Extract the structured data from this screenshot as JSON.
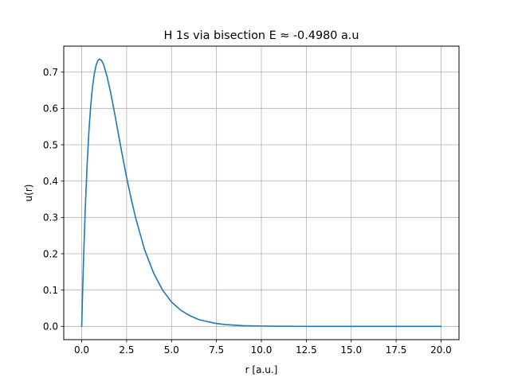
{
  "chart_data": {
    "type": "line",
    "title": "H 1s via bisection E ≈ -0.4980 a.u",
    "xlabel": "r [a.u.]",
    "ylabel": "u(r)",
    "xlim": [
      -1.0,
      21.0
    ],
    "ylim": [
      -0.0365,
      0.7715
    ],
    "grid": true,
    "x_ticks": [
      0.0,
      2.5,
      5.0,
      7.5,
      10.0,
      12.5,
      15.0,
      17.5,
      20.0
    ],
    "x_tick_labels": [
      "0.0",
      "2.5",
      "5.0",
      "7.5",
      "10.0",
      "12.5",
      "15.0",
      "17.5",
      "20.0"
    ],
    "y_ticks": [
      0.0,
      0.1,
      0.2,
      0.3,
      0.4,
      0.5,
      0.6,
      0.7
    ],
    "y_tick_labels": [
      "0.0",
      "0.1",
      "0.2",
      "0.3",
      "0.4",
      "0.5",
      "0.6",
      "0.7"
    ],
    "series": [
      {
        "color": "#1f77b4",
        "x": [
          0,
          0.05,
          0.1,
          0.2,
          0.3,
          0.4,
          0.5,
          0.6,
          0.7,
          0.8,
          0.9,
          1.0,
          1.1,
          1.2,
          1.4,
          1.6,
          1.8,
          2.0,
          2.25,
          2.5,
          2.75,
          3.0,
          3.5,
          4.0,
          4.5,
          5.0,
          5.5,
          6.0,
          6.5,
          7.0,
          7.5,
          8.0,
          9.0,
          10.0,
          11.0,
          12.0,
          13.0,
          14.0,
          15.0,
          16.0,
          17.0,
          18.0,
          19.0,
          20.0
        ],
        "y": [
          0,
          0.095,
          0.181,
          0.327,
          0.444,
          0.536,
          0.607,
          0.659,
          0.695,
          0.719,
          0.732,
          0.736,
          0.732,
          0.723,
          0.69,
          0.646,
          0.595,
          0.541,
          0.474,
          0.41,
          0.352,
          0.299,
          0.211,
          0.147,
          0.1,
          0.067,
          0.045,
          0.03,
          0.019,
          0.013,
          0.008,
          0.005,
          0.002,
          0.001,
          0.0004,
          0.0002,
          0.0001,
          0.0,
          0.0,
          0.0,
          0.0,
          0.0,
          0.0,
          0.0
        ]
      }
    ]
  }
}
